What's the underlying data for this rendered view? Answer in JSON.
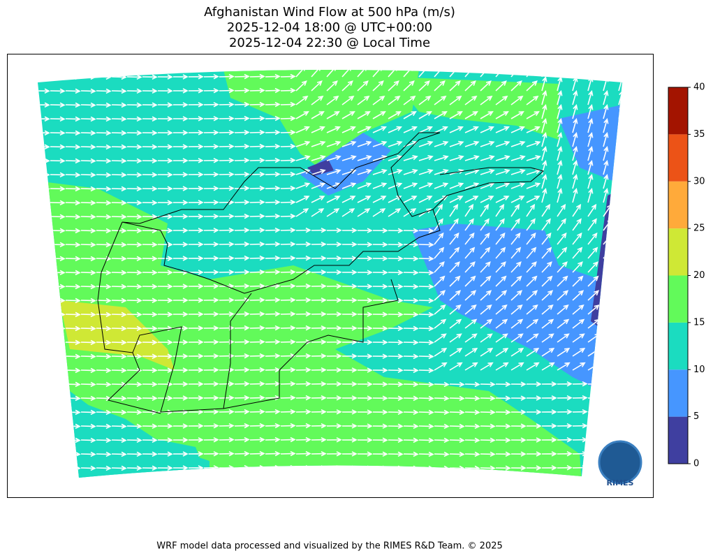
{
  "title": [
    "Afghanistan Wind Flow at 500 hPa (m/s)",
    "2025-12-04 18:00 @ UTC+00:00",
    "2025-12-04 22:30 @ Local Time"
  ],
  "colorbar": {
    "lim": [
      0,
      40
    ],
    "ticks": [
      0,
      5,
      10,
      15,
      20,
      25,
      30,
      35,
      40
    ],
    "colors": [
      "#3f3fa0",
      "#4696ff",
      "#1bdcc0",
      "#62fa5a",
      "#cfe835",
      "#ffaa3a",
      "#ec5317",
      "#a31400"
    ]
  },
  "logo": "RIMES",
  "footer": "WRF model data processed and visualized by the RIMES R&D Team. © 2025"
}
